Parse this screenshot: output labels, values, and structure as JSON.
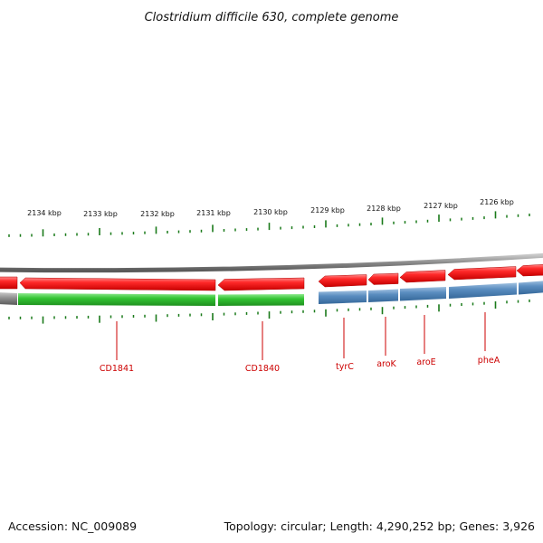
{
  "title": "Clostridium difficile 630, complete genome",
  "ruler": {
    "labels": [
      "2134 kbp",
      "2133 kbp",
      "2132 kbp",
      "2131 kbp",
      "2130 kbp",
      "2129 kbp",
      "2128 kbp",
      "2127 kbp",
      "2126 kbp"
    ]
  },
  "genes": [
    {
      "name": "CD1841",
      "strand": "reverse",
      "color": "#2db82d"
    },
    {
      "name": "CD1840",
      "strand": "reverse",
      "color": "#2db82d"
    },
    {
      "name": "tyrC",
      "strand": "reverse",
      "color": "#4a7fb5"
    },
    {
      "name": "aroK",
      "strand": "reverse",
      "color": "#4a7fb5"
    },
    {
      "name": "aroE",
      "strand": "reverse",
      "color": "#4a7fb5"
    },
    {
      "name": "pheA",
      "strand": "reverse",
      "color": "#4a7fb5"
    }
  ],
  "colors": {
    "cds_feature": "#ee1111",
    "backbone": "#808080",
    "ticks": "#1a7a1a",
    "labels": "#cc0000"
  },
  "footer": {
    "accession": "Accession: NC_009089",
    "summary": "Topology: circular; Length: 4,290,252 bp; Genes: 3,926"
  }
}
